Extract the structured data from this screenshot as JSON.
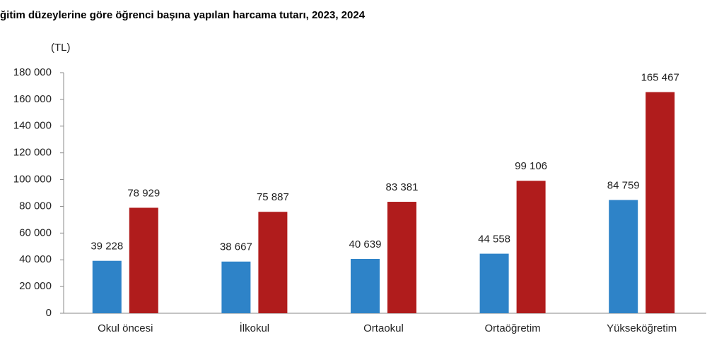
{
  "chart_data": {
    "type": "bar",
    "title": "ğitim düzeylerine göre öğrenci başına yapılan harcama tutarı, 2023, 2024",
    "y_label": "(TL)",
    "categories": [
      "Okul öncesi",
      "İlkokul",
      "Ortaokul",
      "Ortaöğretim",
      "Yükseköğretim"
    ],
    "series": [
      {
        "color": "#2e83c8",
        "values": [
          39228,
          38667,
          40639,
          44558,
          84759
        ],
        "value_labels": [
          "39 228",
          "38 667",
          "40 639",
          "44 558",
          "84 759"
        ]
      },
      {
        "color": "#b01c1c",
        "values": [
          78929,
          75887,
          83381,
          99106,
          165467
        ],
        "value_labels": [
          "78 929",
          "75 887",
          "83 381",
          "99 106",
          "165 467"
        ]
      }
    ],
    "ylim": [
      0,
      180000
    ],
    "yticks": [
      0,
      {
        "value": 20000,
        "label": "20 000"
      },
      {
        "value": 40000,
        "label": "40 000"
      },
      {
        "value": 60000,
        "label": "60 000"
      },
      {
        "value": 80000,
        "label": "80 000"
      },
      {
        "value": 100000,
        "label": "100 000"
      },
      {
        "value": 120000,
        "label": "120 000"
      },
      {
        "value": 140000,
        "label": "140 000"
      },
      {
        "value": 160000,
        "label": "160 000"
      },
      {
        "value": 180000,
        "label": "180 000"
      }
    ],
    "grid": false
  }
}
